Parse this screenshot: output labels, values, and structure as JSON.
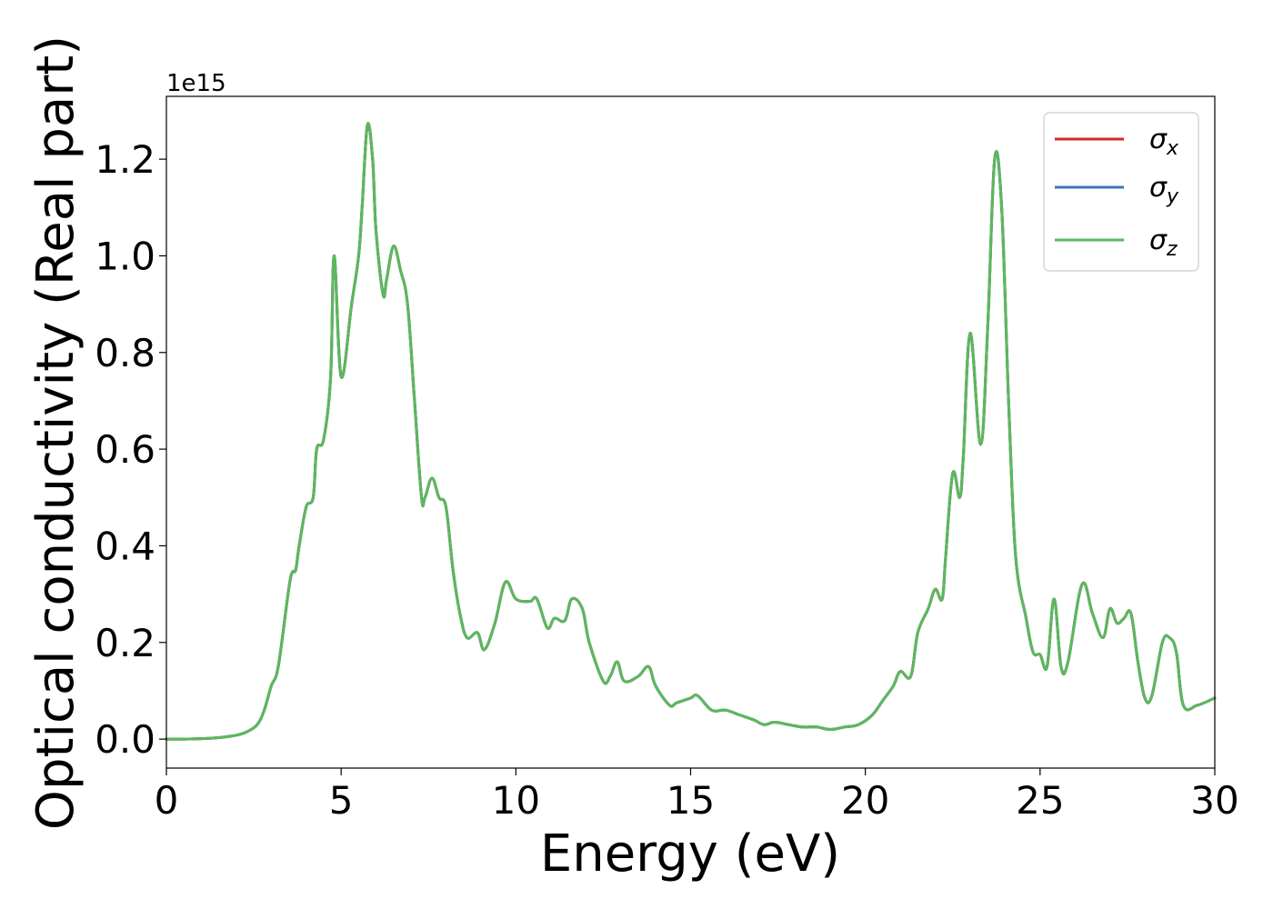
{
  "chart_data": {
    "type": "line",
    "xlabel": "Energy (eV)",
    "ylabel": "Optical conductivity (Real part)",
    "y_offset_text": "1e15",
    "xlim": [
      0,
      30
    ],
    "ylim": [
      -0.06,
      1.33
    ],
    "x_ticks": [
      0,
      5,
      10,
      15,
      20,
      25,
      30
    ],
    "y_ticks": [
      0.0,
      0.2,
      0.4,
      0.6,
      0.8,
      1.0,
      1.2
    ],
    "x_tick_labels": [
      "0",
      "5",
      "10",
      "15",
      "20",
      "25",
      "30"
    ],
    "y_tick_labels": [
      "0.0",
      "0.2",
      "0.4",
      "0.6",
      "0.8",
      "1.0",
      "1.2"
    ],
    "grid": false,
    "legend_position": "top-right",
    "colors": {
      "sigma_x": "#d62728",
      "sigma_y": "#3a78b5",
      "sigma_z": "#5cb85c"
    },
    "series": [
      {
        "name": "σx",
        "symbol": "σ",
        "subscript": "x",
        "color": "#d62728"
      },
      {
        "name": "σy",
        "symbol": "σ",
        "subscript": "y",
        "color": "#3a78b5"
      },
      {
        "name": "σz",
        "symbol": "σ",
        "subscript": "z",
        "color": "#5cb85c"
      }
    ],
    "x": [
      0,
      0.5,
      1.0,
      1.5,
      2.0,
      2.3,
      2.6,
      2.8,
      3.0,
      3.2,
      3.5,
      3.6,
      3.7,
      3.8,
      4.0,
      4.2,
      4.3,
      4.5,
      4.7,
      4.8,
      5.0,
      5.3,
      5.5,
      5.6,
      5.75,
      5.9,
      6.0,
      6.2,
      6.3,
      6.5,
      6.7,
      6.9,
      7.1,
      7.3,
      7.4,
      7.6,
      7.8,
      8.0,
      8.2,
      8.4,
      8.6,
      8.9,
      9.1,
      9.4,
      9.7,
      10.0,
      10.4,
      10.6,
      10.9,
      11.1,
      11.4,
      11.6,
      11.9,
      12.1,
      12.5,
      12.7,
      12.9,
      13.1,
      13.5,
      13.8,
      14.0,
      14.4,
      14.6,
      15.0,
      15.2,
      15.6,
      16.0,
      16.4,
      16.8,
      17.1,
      17.4,
      17.8,
      18.2,
      18.6,
      19.0,
      19.4,
      19.8,
      20.2,
      20.5,
      20.8,
      21.0,
      21.3,
      21.5,
      21.8,
      22.0,
      22.2,
      22.3,
      22.5,
      22.7,
      22.8,
      23.0,
      23.3,
      23.5,
      23.7,
      23.9,
      24.1,
      24.3,
      24.6,
      24.8,
      25.0,
      25.2,
      25.4,
      25.6,
      25.8,
      26.2,
      26.5,
      26.8,
      27.0,
      27.2,
      27.4,
      27.6,
      27.8,
      28.0,
      28.2,
      28.5,
      28.7,
      28.9,
      29.1,
      29.5,
      30.0
    ],
    "y": [
      0.0,
      0.0,
      0.001,
      0.003,
      0.008,
      0.015,
      0.03,
      0.06,
      0.11,
      0.15,
      0.31,
      0.345,
      0.35,
      0.4,
      0.48,
      0.5,
      0.6,
      0.62,
      0.75,
      1.0,
      0.75,
      0.9,
      1.0,
      1.1,
      1.27,
      1.2,
      1.05,
      0.92,
      0.95,
      1.02,
      0.97,
      0.9,
      0.7,
      0.5,
      0.5,
      0.54,
      0.5,
      0.48,
      0.35,
      0.26,
      0.21,
      0.22,
      0.185,
      0.24,
      0.325,
      0.29,
      0.285,
      0.29,
      0.23,
      0.25,
      0.245,
      0.29,
      0.27,
      0.2,
      0.12,
      0.13,
      0.16,
      0.12,
      0.13,
      0.15,
      0.11,
      0.07,
      0.075,
      0.085,
      0.09,
      0.06,
      0.06,
      0.05,
      0.04,
      0.03,
      0.035,
      0.03,
      0.025,
      0.025,
      0.02,
      0.025,
      0.03,
      0.05,
      0.08,
      0.11,
      0.14,
      0.13,
      0.22,
      0.27,
      0.31,
      0.29,
      0.38,
      0.55,
      0.5,
      0.58,
      0.84,
      0.61,
      0.85,
      1.2,
      1.1,
      0.7,
      0.38,
      0.25,
      0.18,
      0.175,
      0.15,
      0.29,
      0.15,
      0.16,
      0.32,
      0.26,
      0.21,
      0.27,
      0.24,
      0.25,
      0.26,
      0.16,
      0.085,
      0.09,
      0.2,
      0.21,
      0.18,
      0.07,
      0.07,
      0.085
    ]
  }
}
